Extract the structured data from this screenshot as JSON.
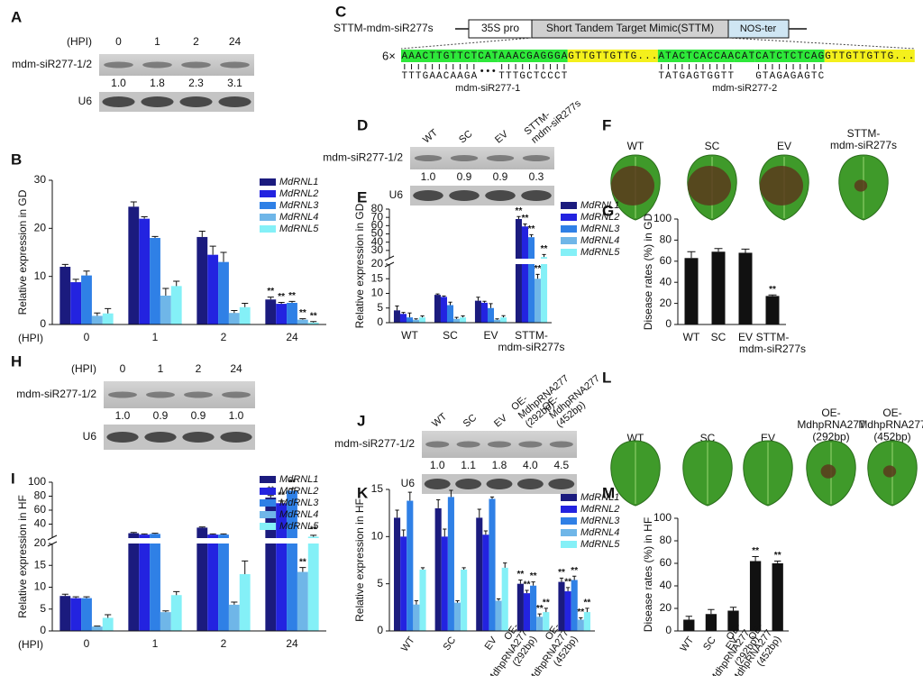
{
  "panel_labels": [
    "A",
    "B",
    "C",
    "D",
    "E",
    "F",
    "G",
    "H",
    "I",
    "J",
    "K",
    "L",
    "M"
  ],
  "blots": [
    {
      "header": "(HPI)",
      "lanes": [
        "0",
        "1",
        "2",
        "24"
      ],
      "rows": [
        "mdm-siR277-1/2",
        "U6"
      ],
      "quant": [
        "1.0",
        "1.8",
        "2.3",
        "3.1"
      ]
    },
    {
      "lanes": [
        "WT",
        "SC",
        "EV",
        "STTM-\nmdm-siR277s"
      ],
      "rows": [
        "mdm-siR277-1/2",
        "U6"
      ],
      "quant": [
        "1.0",
        "0.9",
        "0.9",
        "0.3"
      ]
    },
    {
      "header": "(HPI)",
      "lanes": [
        "0",
        "1",
        "2",
        "24"
      ],
      "rows": [
        "mdm-siR277-1/2",
        "U6"
      ],
      "quant": [
        "1.0",
        "0.9",
        "0.9",
        "1.0"
      ]
    },
    {
      "lanes": [
        "WT",
        "SC",
        "EV",
        "OE-\nMdhpRNA277\n(292bp)",
        "OE-\nMdhpRNA277\n(452bp)"
      ],
      "rows": [
        "mdm-siR277-1/2",
        "U6"
      ],
      "quant": [
        "1.0",
        "1.1",
        "1.8",
        "4.0",
        "4.5"
      ]
    }
  ],
  "construct": {
    "name": "STTM-mdm-siR277s",
    "elements": [
      "35S pro",
      "Short Tandem Target Mimic(STTM)",
      "NOS-ter"
    ],
    "repeat": "6×",
    "sequence": [
      {
        "text": "AAACTTGTTCT",
        "role": "site"
      },
      {
        "text": "CAT",
        "role": "bulge"
      },
      {
        "text": "AAACGAGGGA",
        "role": "site"
      },
      {
        "text": "GTTGTTGTTG...",
        "role": "spacer"
      },
      {
        "text": "ATACTCACCAA",
        "role": "site"
      },
      {
        "text": "CAT",
        "role": "bulge"
      },
      {
        "text": "CATCTCTCAG",
        "role": "site"
      },
      {
        "text": "GTTGTTGTTG...",
        "role": "spacer"
      }
    ],
    "duplexes": [
      {
        "name": "mdm-siR277-1",
        "left": "TTTGAACAAGA",
        "gap": "•••",
        "right": "TTTGCTCCCT"
      },
      {
        "name": "mdm-siR277-2",
        "left": "TATGAGTGGTT",
        "right": "GTAGAGAGTC"
      }
    ]
  },
  "leaves": [
    {
      "labels": [
        "WT",
        "SC",
        "EV",
        "STTM-\nmdm-siR277s"
      ]
    },
    {
      "labels": [
        "WT",
        "SC",
        "EV",
        "OE-\nMdhpRNA277\n(292bp)",
        "OE-\nMdhpRNA277\n(452bp)"
      ]
    }
  ],
  "chart_data": [
    {
      "type": "bar",
      "ylabel": "Relative expression in GD",
      "xlabel": "(HPI)",
      "categories": [
        "0",
        "1",
        "2",
        "24"
      ],
      "ylim": [
        0,
        30
      ],
      "yticks": [
        0,
        10,
        20,
        30
      ],
      "series": [
        {
          "name": "MdRNL1",
          "color": "#1b1b7e",
          "values": [
            12,
            24.5,
            18.2,
            5.2
          ],
          "errors": [
            0.5,
            1,
            1.2,
            0.5
          ],
          "significance": [
            null,
            null,
            null,
            "**"
          ]
        },
        {
          "name": "MdRNL2",
          "color": "#2323e0",
          "values": [
            8.8,
            22,
            14.5,
            4.3
          ],
          "errors": [
            0.6,
            0.4,
            1.8,
            0.3
          ],
          "significance": [
            null,
            null,
            null,
            "**"
          ]
        },
        {
          "name": "MdRNL3",
          "color": "#2f80e6",
          "values": [
            10.2,
            18,
            13,
            4.5
          ],
          "errors": [
            0.9,
            0.3,
            2,
            0.3
          ],
          "significance": [
            null,
            null,
            null,
            "**"
          ]
        },
        {
          "name": "MdRNL4",
          "color": "#6fb6e8",
          "values": [
            1.8,
            6,
            2.4,
            1
          ],
          "errors": [
            0.6,
            1.5,
            0.5,
            0.2
          ],
          "significance": [
            null,
            null,
            null,
            "**"
          ]
        },
        {
          "name": "MdRNL5",
          "color": "#84f0f7",
          "values": [
            2.3,
            8,
            3.6,
            0.4
          ],
          "errors": [
            1,
            1,
            0.8,
            0.2
          ],
          "significance": [
            null,
            null,
            null,
            "**"
          ]
        }
      ]
    },
    {
      "type": "bar",
      "ylabel": "Relative expression in GD",
      "categories": [
        "WT",
        "SC",
        "EV",
        "STTM-\nmdm-siR277s"
      ],
      "ylim": [
        0,
        80
      ],
      "ybreak": 20,
      "yticks": [
        0,
        5,
        10,
        15,
        20,
        30,
        40,
        50,
        60,
        70,
        80
      ],
      "series": [
        {
          "name": "MdRNL1",
          "color": "#1b1b7e",
          "values": [
            4.2,
            9.5,
            7.5,
            68
          ],
          "errors": [
            1.5,
            0.3,
            1.2,
            3
          ],
          "significance": [
            null,
            null,
            null,
            "**"
          ]
        },
        {
          "name": "MdRNL2",
          "color": "#2323e0",
          "values": [
            3,
            8.8,
            6.8,
            59
          ],
          "errors": [
            0.5,
            0.3,
            0.5,
            3
          ],
          "significance": [
            null,
            null,
            null,
            "**"
          ]
        },
        {
          "name": "MdRNL3",
          "color": "#2f80e6",
          "values": [
            1.8,
            6,
            5,
            46
          ],
          "errors": [
            1.5,
            1,
            1.5,
            3
          ],
          "significance": [
            null,
            null,
            null,
            "**"
          ]
        },
        {
          "name": "MdRNL4",
          "color": "#6fb6e8",
          "values": [
            1,
            1.3,
            1,
            15
          ],
          "errors": [
            0.3,
            0.5,
            0.3,
            1.5
          ],
          "significance": [
            null,
            null,
            null,
            "**"
          ]
        },
        {
          "name": "MdRNL5",
          "color": "#84f0f7",
          "values": [
            1.8,
            1.8,
            1.8,
            22
          ],
          "errors": [
            0.5,
            0.5,
            0.6,
            3
          ],
          "significance": [
            null,
            null,
            null,
            "**"
          ]
        }
      ]
    },
    {
      "type": "bar",
      "ylabel": "Disease rates (%) in GD",
      "color": "#111111",
      "categories": [
        "WT",
        "SC",
        "EV",
        "STTM-\nmdm-siR277s"
      ],
      "ylim": [
        0,
        100
      ],
      "yticks": [
        0,
        20,
        40,
        60,
        80,
        100
      ],
      "values": [
        63,
        69,
        68,
        27
      ],
      "errors": [
        6,
        3,
        3.5,
        1
      ],
      "significance": [
        null,
        null,
        null,
        "**"
      ]
    },
    {
      "type": "bar",
      "ylabel": "Relative expression in HF",
      "xlabel": "(HPI)",
      "categories": [
        "0",
        "1",
        "2",
        "24"
      ],
      "ylim": [
        0,
        100
      ],
      "ybreak": 20,
      "yticks": [
        0,
        5,
        10,
        15,
        20,
        40,
        60,
        80,
        100
      ],
      "series": [
        {
          "name": "MdRNL1",
          "color": "#1b1b7e",
          "values": [
            8,
            27,
            35,
            78
          ],
          "errors": [
            0.4,
            1,
            1,
            3
          ],
          "significance": [
            null,
            null,
            null,
            "**"
          ]
        },
        {
          "name": "MdRNL2",
          "color": "#2323e0",
          "values": [
            7.5,
            25,
            25,
            70
          ],
          "errors": [
            0.3,
            1,
            1,
            3
          ],
          "significance": [
            null,
            null,
            null,
            "**"
          ]
        },
        {
          "name": "MdRNL3",
          "color": "#2f80e6",
          "values": [
            7.5,
            26,
            25,
            88
          ],
          "errors": [
            0.3,
            1,
            1,
            3
          ],
          "significance": [
            null,
            null,
            null,
            "**"
          ]
        },
        {
          "name": "MdRNL4",
          "color": "#6fb6e8",
          "values": [
            1,
            4.3,
            6,
            13.5
          ],
          "errors": [
            0.1,
            0.3,
            0.6,
            1
          ],
          "significance": [
            null,
            null,
            null,
            "**"
          ]
        },
        {
          "name": "MdRNL5",
          "color": "#84f0f7",
          "values": [
            3,
            8.2,
            13,
            22
          ],
          "errors": [
            0.7,
            0.8,
            3,
            2
          ],
          "significance": [
            null,
            null,
            null,
            "**"
          ]
        }
      ]
    },
    {
      "type": "bar",
      "ylabel": "Relative expression in HF",
      "categories": [
        "WT",
        "SC",
        "EV",
        "OE-\nMdhpRNA277\n(292bp)",
        "OE-\nMdhpRNA277\n(452bp)"
      ],
      "ylim": [
        0,
        15
      ],
      "yticks": [
        0,
        5,
        10,
        15
      ],
      "series": [
        {
          "name": "MdRNL1",
          "color": "#1b1b7e",
          "values": [
            12,
            13,
            12,
            5,
            5.2
          ],
          "errors": [
            0.8,
            0.9,
            0.9,
            0.4,
            0.4
          ],
          "significance": [
            null,
            null,
            null,
            "**",
            "**"
          ]
        },
        {
          "name": "MdRNL2",
          "color": "#2323e0",
          "values": [
            10,
            10,
            10.2,
            4,
            4.2
          ],
          "errors": [
            0.7,
            0.8,
            0.4,
            0.3,
            0.4
          ],
          "significance": [
            null,
            null,
            null,
            "**",
            "**"
          ]
        },
        {
          "name": "MdRNL3",
          "color": "#2f80e6",
          "values": [
            13.8,
            14.2,
            14,
            4.8,
            5.4
          ],
          "errors": [
            0.9,
            0.7,
            0.2,
            0.4,
            0.4
          ],
          "significance": [
            null,
            null,
            null,
            "**",
            "**"
          ]
        },
        {
          "name": "MdRNL4",
          "color": "#6fb6e8",
          "values": [
            2.8,
            3,
            3.2,
            1.5,
            1.2
          ],
          "errors": [
            0.4,
            0.2,
            0.2,
            0.3,
            0.2
          ],
          "significance": [
            null,
            null,
            null,
            "**",
            "**"
          ]
        },
        {
          "name": "MdRNL5",
          "color": "#84f0f7",
          "values": [
            6.5,
            6.5,
            6.7,
            2,
            2
          ],
          "errors": [
            0.2,
            0.2,
            0.5,
            0.4,
            0.4
          ],
          "significance": [
            null,
            null,
            null,
            "**",
            "**"
          ]
        }
      ]
    },
    {
      "type": "bar",
      "ylabel": "Disease rates (%) in HF",
      "color": "#111111",
      "categories": [
        "WT",
        "SC",
        "EV",
        "OE-\nMdhpRNA277\n(292bp)",
        "OE-\nMdhpRNA277\n(452bp)"
      ],
      "ylim": [
        0,
        100
      ],
      "yticks": [
        0,
        20,
        40,
        60,
        80,
        100
      ],
      "values": [
        10,
        15,
        18,
        62,
        60
      ],
      "errors": [
        3,
        4,
        3,
        4,
        2
      ],
      "significance": [
        null,
        null,
        null,
        "**",
        "**"
      ]
    }
  ]
}
